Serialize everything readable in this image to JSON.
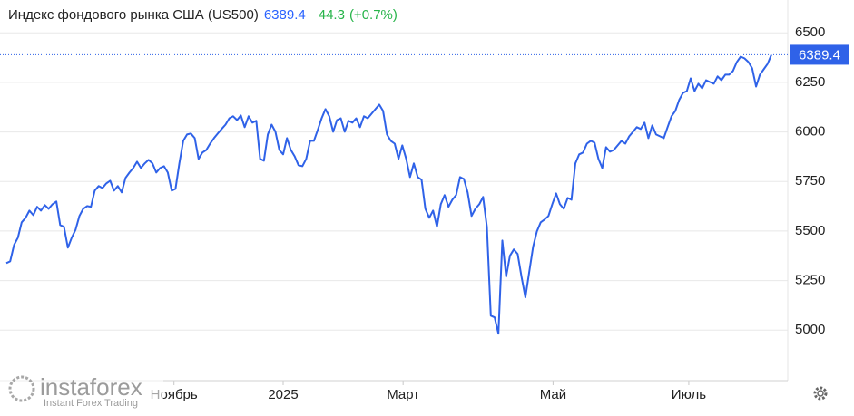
{
  "chart_data": {
    "type": "line",
    "title": "Индекс фондового рынка США (US500)",
    "change": 44.3,
    "change_percent": {
      "value": 0.7,
      "label": "(+0.7%)"
    },
    "series": [
      {
        "name": "US500",
        "color": "#2f62e8",
        "values": [
          5338,
          5347,
          5430,
          5466,
          5544,
          5567,
          5603,
          5580,
          5622,
          5603,
          5631,
          5612,
          5635,
          5649,
          5530,
          5521,
          5416,
          5466,
          5507,
          5576,
          5612,
          5626,
          5622,
          5704,
          5727,
          5717,
          5740,
          5754,
          5704,
          5727,
          5695,
          5768,
          5795,
          5818,
          5850,
          5818,
          5841,
          5859,
          5841,
          5795,
          5818,
          5827,
          5795,
          5704,
          5713,
          5841,
          5955,
          5987,
          5992,
          5969,
          5864,
          5896,
          5909,
          5941,
          5969,
          5992,
          6015,
          6037,
          6069,
          6079,
          6060,
          6083,
          6024,
          6079,
          6047,
          6056,
          5864,
          5855,
          5987,
          6037,
          6001,
          5909,
          5887,
          5969,
          5909,
          5877,
          5832,
          5827,
          5864,
          5955,
          5955,
          6010,
          6069,
          6115,
          6079,
          6001,
          6060,
          6069,
          6001,
          6056,
          6047,
          6069,
          6024,
          6079,
          6069,
          6092,
          6115,
          6138,
          6106,
          5987,
          5955,
          5941,
          5864,
          5932,
          5864,
          5772,
          5841,
          5772,
          5759,
          5612,
          5567,
          5603,
          5521,
          5635,
          5681,
          5622,
          5658,
          5681,
          5772,
          5763,
          5695,
          5576,
          5612,
          5635,
          5672,
          5521,
          5073,
          5064,
          4982,
          5452,
          5270,
          5375,
          5407,
          5384,
          5270,
          5165,
          5292,
          5420,
          5498,
          5544,
          5558,
          5576,
          5635,
          5690,
          5635,
          5612,
          5667,
          5658,
          5841,
          5887,
          5896,
          5941,
          5955,
          5946,
          5864,
          5818,
          5923,
          5900,
          5909,
          5932,
          5955,
          5941,
          5978,
          6001,
          6024,
          6015,
          6047,
          5969,
          6033,
          5987,
          5978,
          5969,
          6024,
          6079,
          6106,
          6161,
          6197,
          6206,
          6270,
          6206,
          6243,
          6220,
          6261,
          6252,
          6243,
          6280,
          6261,
          6289,
          6289,
          6307,
          6353,
          6380,
          6371,
          6353,
          6321,
          6229,
          6289,
          6316,
          6344,
          6389.4
        ]
      }
    ],
    "xticks": [
      {
        "value": 43.6,
        "label": "Ноябрь"
      },
      {
        "value": 72,
        "label": "2025"
      },
      {
        "value": 103.2,
        "label": "Март"
      },
      {
        "value": 142.2,
        "label": "Май"
      },
      {
        "value": 177.5,
        "label": "Июль"
      }
    ],
    "ylim": [
      4745,
      6620
    ],
    "yticks": [
      5000,
      5250,
      5500,
      5750,
      6000,
      6250,
      6500
    ],
    "grid": true,
    "watermark": {
      "brand": "instaforex",
      "tagline": "Instant Forex Trading"
    }
  }
}
